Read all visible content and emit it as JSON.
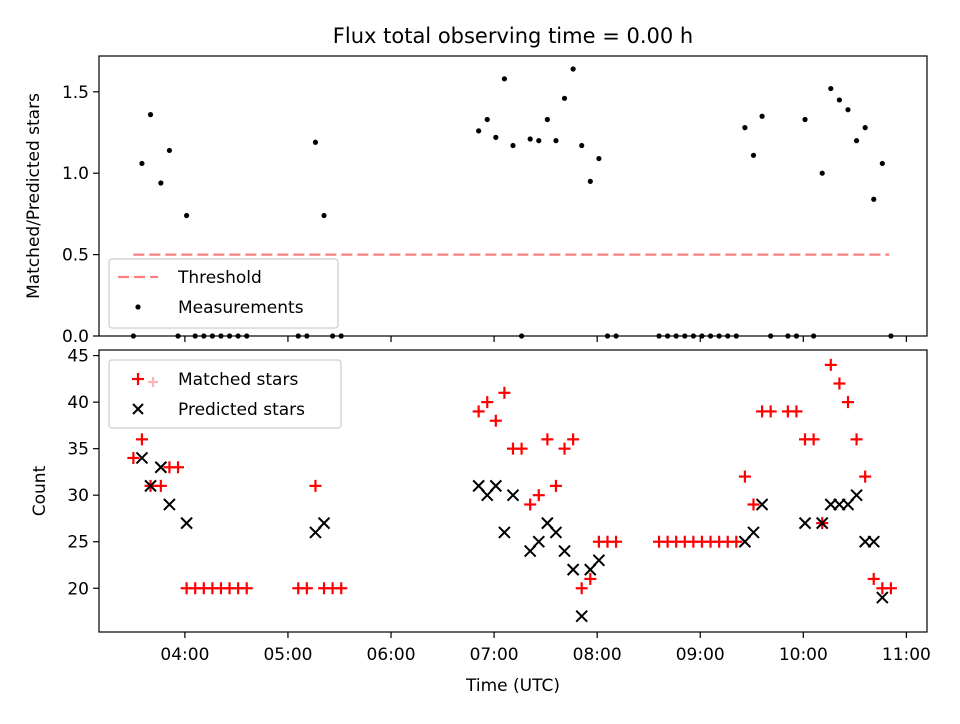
{
  "chart_data": [
    {
      "type": "scatter",
      "title": "Flux total observing time = 0.00 h",
      "ylabel": "Matched/Predicted stars",
      "xlabel": "",
      "ylim": [
        0,
        1.72
      ],
      "yticks": [
        0.0,
        0.5,
        1.0,
        1.5
      ],
      "ytick_labels": [
        "0.0",
        "0.5",
        "1.0",
        "1.5"
      ],
      "legend_position": "lower-left",
      "threshold": {
        "name": "Threshold",
        "value": 0.5,
        "x_range": [
          "03:30",
          "10:50"
        ],
        "color": "#ff7f7f"
      },
      "series": [
        {
          "name": "Measurements",
          "color": "#000000",
          "points": [
            [
              "03:30",
              0.0
            ],
            [
              "03:35",
              1.06
            ],
            [
              "03:40",
              1.36
            ],
            [
              "03:46",
              0.94
            ],
            [
              "03:51",
              1.14
            ],
            [
              "03:56",
              0.0
            ],
            [
              "04:01",
              0.74
            ],
            [
              "04:06",
              0.0
            ],
            [
              "04:11",
              0.0
            ],
            [
              "04:16",
              0.0
            ],
            [
              "04:21",
              0.0
            ],
            [
              "04:26",
              0.0
            ],
            [
              "04:31",
              0.0
            ],
            [
              "04:36",
              0.0
            ],
            [
              "05:06",
              0.0
            ],
            [
              "05:11",
              0.0
            ],
            [
              "05:16",
              1.19
            ],
            [
              "05:21",
              0.74
            ],
            [
              "05:26",
              0.0
            ],
            [
              "05:31",
              0.0
            ],
            [
              "06:51",
              1.26
            ],
            [
              "06:56",
              1.33
            ],
            [
              "07:01",
              1.22
            ],
            [
              "07:06",
              1.58
            ],
            [
              "07:11",
              1.17
            ],
            [
              "07:16",
              0.0
            ],
            [
              "07:21",
              1.21
            ],
            [
              "07:26",
              1.2
            ],
            [
              "07:31",
              1.33
            ],
            [
              "07:36",
              1.2
            ],
            [
              "07:41",
              1.46
            ],
            [
              "07:46",
              1.64
            ],
            [
              "07:51",
              1.17
            ],
            [
              "07:56",
              0.95
            ],
            [
              "08:01",
              1.09
            ],
            [
              "08:06",
              0.0
            ],
            [
              "08:11",
              0.0
            ],
            [
              "08:36",
              0.0
            ],
            [
              "08:41",
              0.0
            ],
            [
              "08:46",
              0.0
            ],
            [
              "08:51",
              0.0
            ],
            [
              "08:56",
              0.0
            ],
            [
              "09:01",
              0.0
            ],
            [
              "09:06",
              0.0
            ],
            [
              "09:11",
              0.0
            ],
            [
              "09:16",
              0.0
            ],
            [
              "09:21",
              0.0
            ],
            [
              "09:26",
              1.28
            ],
            [
              "09:31",
              1.11
            ],
            [
              "09:36",
              1.35
            ],
            [
              "09:41",
              0.0
            ],
            [
              "09:51",
              0.0
            ],
            [
              "09:56",
              0.0
            ],
            [
              "10:01",
              1.33
            ],
            [
              "10:06",
              0.0
            ],
            [
              "10:11",
              1.0
            ],
            [
              "10:16",
              1.52
            ],
            [
              "10:21",
              1.45
            ],
            [
              "10:26",
              1.39
            ],
            [
              "10:31",
              1.2
            ],
            [
              "10:36",
              1.28
            ],
            [
              "10:41",
              0.84
            ],
            [
              "10:46",
              1.06
            ],
            [
              "10:51",
              0.0
            ]
          ]
        }
      ]
    },
    {
      "type": "scatter",
      "title": "",
      "ylabel": "Count",
      "xlabel": "Time (UTC)",
      "ylim": [
        15.3,
        45.6
      ],
      "yticks": [
        20,
        25,
        30,
        35,
        40,
        45
      ],
      "ytick_labels": [
        "20",
        "25",
        "30",
        "35",
        "40",
        "45"
      ],
      "legend_position": "upper-left",
      "series": [
        {
          "name": "Matched stars",
          "color": "#ff0000",
          "marker": "plus",
          "points": [
            [
              "03:30",
              34
            ],
            [
              "03:35",
              36
            ],
            [
              "03:40",
              31
            ],
            [
              "03:46",
              31
            ],
            [
              "03:51",
              33
            ],
            [
              "03:56",
              33
            ],
            [
              "04:01",
              20
            ],
            [
              "04:06",
              20
            ],
            [
              "04:11",
              20
            ],
            [
              "04:16",
              20
            ],
            [
              "04:21",
              20
            ],
            [
              "04:26",
              20
            ],
            [
              "04:31",
              20
            ],
            [
              "04:36",
              20
            ],
            [
              "05:06",
              20
            ],
            [
              "05:11",
              20
            ],
            [
              "05:16",
              31
            ],
            [
              "05:21",
              20
            ],
            [
              "05:26",
              20
            ],
            [
              "05:31",
              20
            ],
            [
              "06:51",
              39
            ],
            [
              "06:56",
              40
            ],
            [
              "07:01",
              38
            ],
            [
              "07:06",
              41
            ],
            [
              "07:11",
              35
            ],
            [
              "07:16",
              35
            ],
            [
              "07:21",
              29
            ],
            [
              "07:26",
              30
            ],
            [
              "07:31",
              36
            ],
            [
              "07:36",
              31
            ],
            [
              "07:41",
              35
            ],
            [
              "07:46",
              36
            ],
            [
              "07:51",
              20
            ],
            [
              "07:56",
              21
            ],
            [
              "08:01",
              25
            ],
            [
              "08:06",
              25
            ],
            [
              "08:11",
              25
            ],
            [
              "08:36",
              25
            ],
            [
              "08:41",
              25
            ],
            [
              "08:46",
              25
            ],
            [
              "08:51",
              25
            ],
            [
              "08:56",
              25
            ],
            [
              "09:01",
              25
            ],
            [
              "09:06",
              25
            ],
            [
              "09:11",
              25
            ],
            [
              "09:16",
              25
            ],
            [
              "09:21",
              25
            ],
            [
              "09:26",
              32
            ],
            [
              "09:31",
              29
            ],
            [
              "09:36",
              39
            ],
            [
              "09:41",
              39
            ],
            [
              "09:51",
              39
            ],
            [
              "09:56",
              39
            ],
            [
              "10:01",
              36
            ],
            [
              "10:06",
              36
            ],
            [
              "10:11",
              27
            ],
            [
              "10:16",
              44
            ],
            [
              "10:21",
              42
            ],
            [
              "10:26",
              40
            ],
            [
              "10:31",
              36
            ],
            [
              "10:36",
              32
            ],
            [
              "10:41",
              21
            ],
            [
              "10:46",
              20
            ],
            [
              "10:51",
              20
            ]
          ]
        },
        {
          "name": "Predicted stars",
          "color": "#000000",
          "marker": "x",
          "points": [
            [
              "03:35",
              34
            ],
            [
              "03:40",
              31
            ],
            [
              "03:46",
              33
            ],
            [
              "03:51",
              29
            ],
            [
              "04:01",
              27
            ],
            [
              "05:16",
              26
            ],
            [
              "05:21",
              27
            ],
            [
              "06:51",
              31
            ],
            [
              "06:56",
              30
            ],
            [
              "07:01",
              31
            ],
            [
              "07:06",
              26
            ],
            [
              "07:11",
              30
            ],
            [
              "07:21",
              24
            ],
            [
              "07:26",
              25
            ],
            [
              "07:31",
              27
            ],
            [
              "07:36",
              26
            ],
            [
              "07:41",
              24
            ],
            [
              "07:46",
              22
            ],
            [
              "07:51",
              17
            ],
            [
              "07:56",
              22
            ],
            [
              "08:01",
              23
            ],
            [
              "09:26",
              25
            ],
            [
              "09:31",
              26
            ],
            [
              "09:36",
              29
            ],
            [
              "10:01",
              27
            ],
            [
              "10:11",
              27
            ],
            [
              "10:16",
              29
            ],
            [
              "10:21",
              29
            ],
            [
              "10:26",
              29
            ],
            [
              "10:31",
              30
            ],
            [
              "10:36",
              25
            ],
            [
              "10:41",
              25
            ],
            [
              "10:46",
              19
            ]
          ]
        }
      ]
    }
  ],
  "x_axis": {
    "range": [
      "03:10",
      "11:12"
    ],
    "ticks": [
      "04:00",
      "05:00",
      "06:00",
      "07:00",
      "08:00",
      "09:00",
      "10:00",
      "11:00"
    ],
    "tick_labels": [
      "04:00",
      "05:00",
      "06:00",
      "07:00",
      "08:00",
      "09:00",
      "10:00",
      "11:00"
    ]
  }
}
